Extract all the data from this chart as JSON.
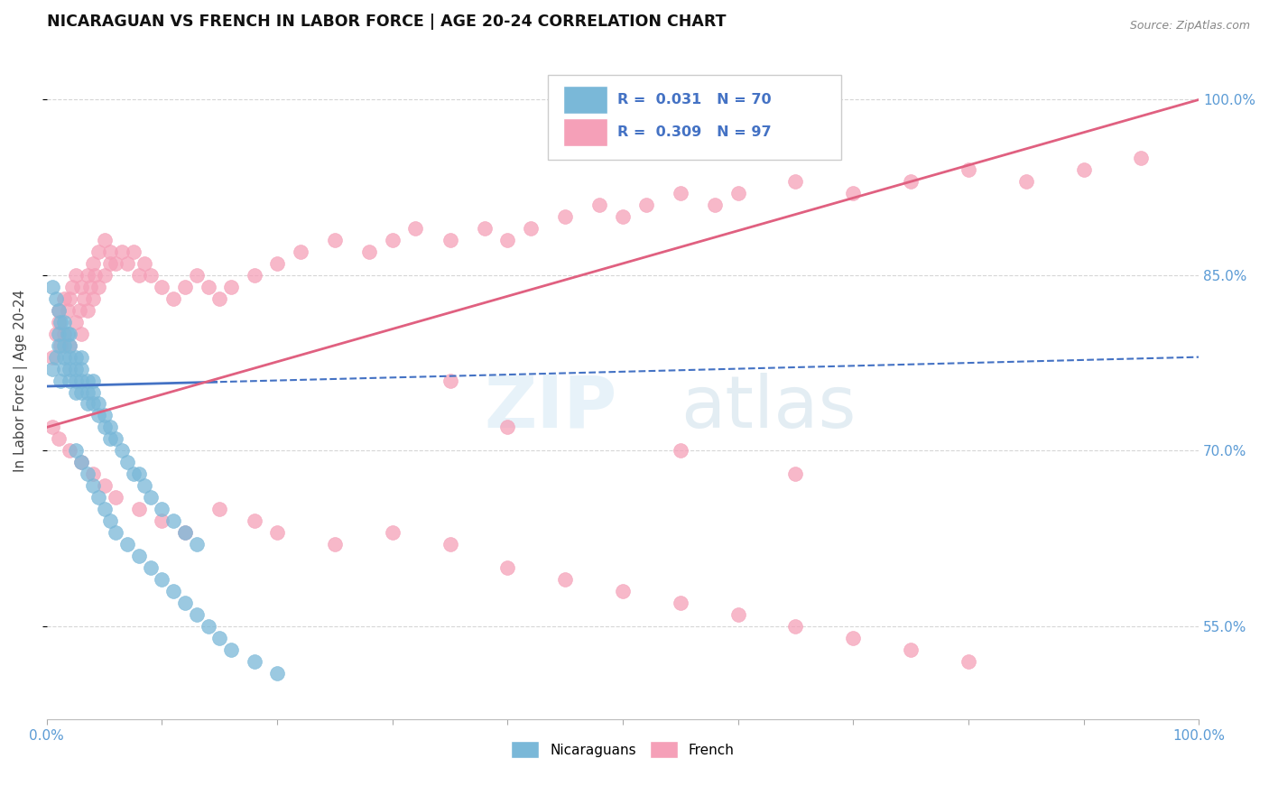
{
  "title": "NICARAGUAN VS FRENCH IN LABOR FORCE | AGE 20-24 CORRELATION CHART",
  "source": "Source: ZipAtlas.com",
  "ylabel": "In Labor Force | Age 20-24",
  "yticks": [
    0.55,
    0.7,
    0.85,
    1.0
  ],
  "ytick_labels": [
    "55.0%",
    "70.0%",
    "85.0%",
    "100.0%"
  ],
  "xlim": [
    0.0,
    1.0
  ],
  "ylim": [
    0.47,
    1.05
  ],
  "legend_entries": [
    {
      "label": "Nicaraguans",
      "color": "#a8c8e8",
      "R": 0.031,
      "N": 70
    },
    {
      "label": "French",
      "color": "#f5b8c8",
      "R": 0.309,
      "N": 97
    }
  ],
  "blue_scatter_color": "#7ab8d8",
  "pink_scatter_color": "#f5a0b8",
  "trend_blue_color": "#4472c4",
  "trend_pink_color": "#e06080",
  "blue_trend_intercept": 0.755,
  "blue_trend_slope": 0.025,
  "pink_trend_intercept": 0.72,
  "pink_trend_slope": 0.28,
  "nicaraguan_x": [
    0.005,
    0.008,
    0.01,
    0.01,
    0.012,
    0.012,
    0.015,
    0.015,
    0.015,
    0.018,
    0.02,
    0.02,
    0.02,
    0.02,
    0.025,
    0.025,
    0.025,
    0.025,
    0.03,
    0.03,
    0.03,
    0.03,
    0.035,
    0.035,
    0.035,
    0.04,
    0.04,
    0.04,
    0.045,
    0.045,
    0.05,
    0.05,
    0.055,
    0.055,
    0.06,
    0.065,
    0.07,
    0.075,
    0.08,
    0.085,
    0.09,
    0.1,
    0.11,
    0.12,
    0.13,
    0.005,
    0.008,
    0.01,
    0.015,
    0.02,
    0.025,
    0.03,
    0.035,
    0.04,
    0.045,
    0.05,
    0.055,
    0.06,
    0.07,
    0.08,
    0.09,
    0.1,
    0.11,
    0.12,
    0.13,
    0.14,
    0.15,
    0.16,
    0.18,
    0.2
  ],
  "nicaraguan_y": [
    0.77,
    0.78,
    0.79,
    0.8,
    0.76,
    0.81,
    0.77,
    0.78,
    0.79,
    0.8,
    0.76,
    0.77,
    0.78,
    0.79,
    0.75,
    0.76,
    0.77,
    0.78,
    0.75,
    0.76,
    0.77,
    0.78,
    0.74,
    0.75,
    0.76,
    0.74,
    0.75,
    0.76,
    0.73,
    0.74,
    0.72,
    0.73,
    0.71,
    0.72,
    0.71,
    0.7,
    0.69,
    0.68,
    0.68,
    0.67,
    0.66,
    0.65,
    0.64,
    0.63,
    0.62,
    0.84,
    0.83,
    0.82,
    0.81,
    0.8,
    0.7,
    0.69,
    0.68,
    0.67,
    0.66,
    0.65,
    0.64,
    0.63,
    0.62,
    0.61,
    0.6,
    0.59,
    0.58,
    0.57,
    0.56,
    0.55,
    0.54,
    0.53,
    0.52,
    0.51
  ],
  "french_x": [
    0.005,
    0.008,
    0.01,
    0.01,
    0.012,
    0.015,
    0.015,
    0.018,
    0.02,
    0.02,
    0.022,
    0.025,
    0.025,
    0.028,
    0.03,
    0.03,
    0.032,
    0.035,
    0.035,
    0.038,
    0.04,
    0.04,
    0.042,
    0.045,
    0.045,
    0.05,
    0.05,
    0.055,
    0.055,
    0.06,
    0.065,
    0.07,
    0.075,
    0.08,
    0.085,
    0.09,
    0.1,
    0.11,
    0.12,
    0.13,
    0.14,
    0.15,
    0.16,
    0.18,
    0.2,
    0.22,
    0.25,
    0.28,
    0.3,
    0.32,
    0.35,
    0.38,
    0.4,
    0.42,
    0.45,
    0.48,
    0.5,
    0.52,
    0.55,
    0.58,
    0.6,
    0.65,
    0.7,
    0.75,
    0.8,
    0.85,
    0.9,
    0.95,
    0.005,
    0.01,
    0.02,
    0.03,
    0.04,
    0.05,
    0.06,
    0.08,
    0.1,
    0.12,
    0.15,
    0.18,
    0.2,
    0.25,
    0.3,
    0.35,
    0.4,
    0.45,
    0.5,
    0.55,
    0.6,
    0.65,
    0.7,
    0.75,
    0.8,
    0.35,
    0.4,
    0.55,
    0.65
  ],
  "french_y": [
    0.78,
    0.8,
    0.81,
    0.82,
    0.79,
    0.8,
    0.83,
    0.82,
    0.79,
    0.83,
    0.84,
    0.81,
    0.85,
    0.82,
    0.8,
    0.84,
    0.83,
    0.82,
    0.85,
    0.84,
    0.83,
    0.86,
    0.85,
    0.84,
    0.87,
    0.85,
    0.88,
    0.86,
    0.87,
    0.86,
    0.87,
    0.86,
    0.87,
    0.85,
    0.86,
    0.85,
    0.84,
    0.83,
    0.84,
    0.85,
    0.84,
    0.83,
    0.84,
    0.85,
    0.86,
    0.87,
    0.88,
    0.87,
    0.88,
    0.89,
    0.88,
    0.89,
    0.88,
    0.89,
    0.9,
    0.91,
    0.9,
    0.91,
    0.92,
    0.91,
    0.92,
    0.93,
    0.92,
    0.93,
    0.94,
    0.93,
    0.94,
    0.95,
    0.72,
    0.71,
    0.7,
    0.69,
    0.68,
    0.67,
    0.66,
    0.65,
    0.64,
    0.63,
    0.65,
    0.64,
    0.63,
    0.62,
    0.63,
    0.62,
    0.6,
    0.59,
    0.58,
    0.57,
    0.56,
    0.55,
    0.54,
    0.53,
    0.52,
    0.76,
    0.72,
    0.7,
    0.68
  ]
}
